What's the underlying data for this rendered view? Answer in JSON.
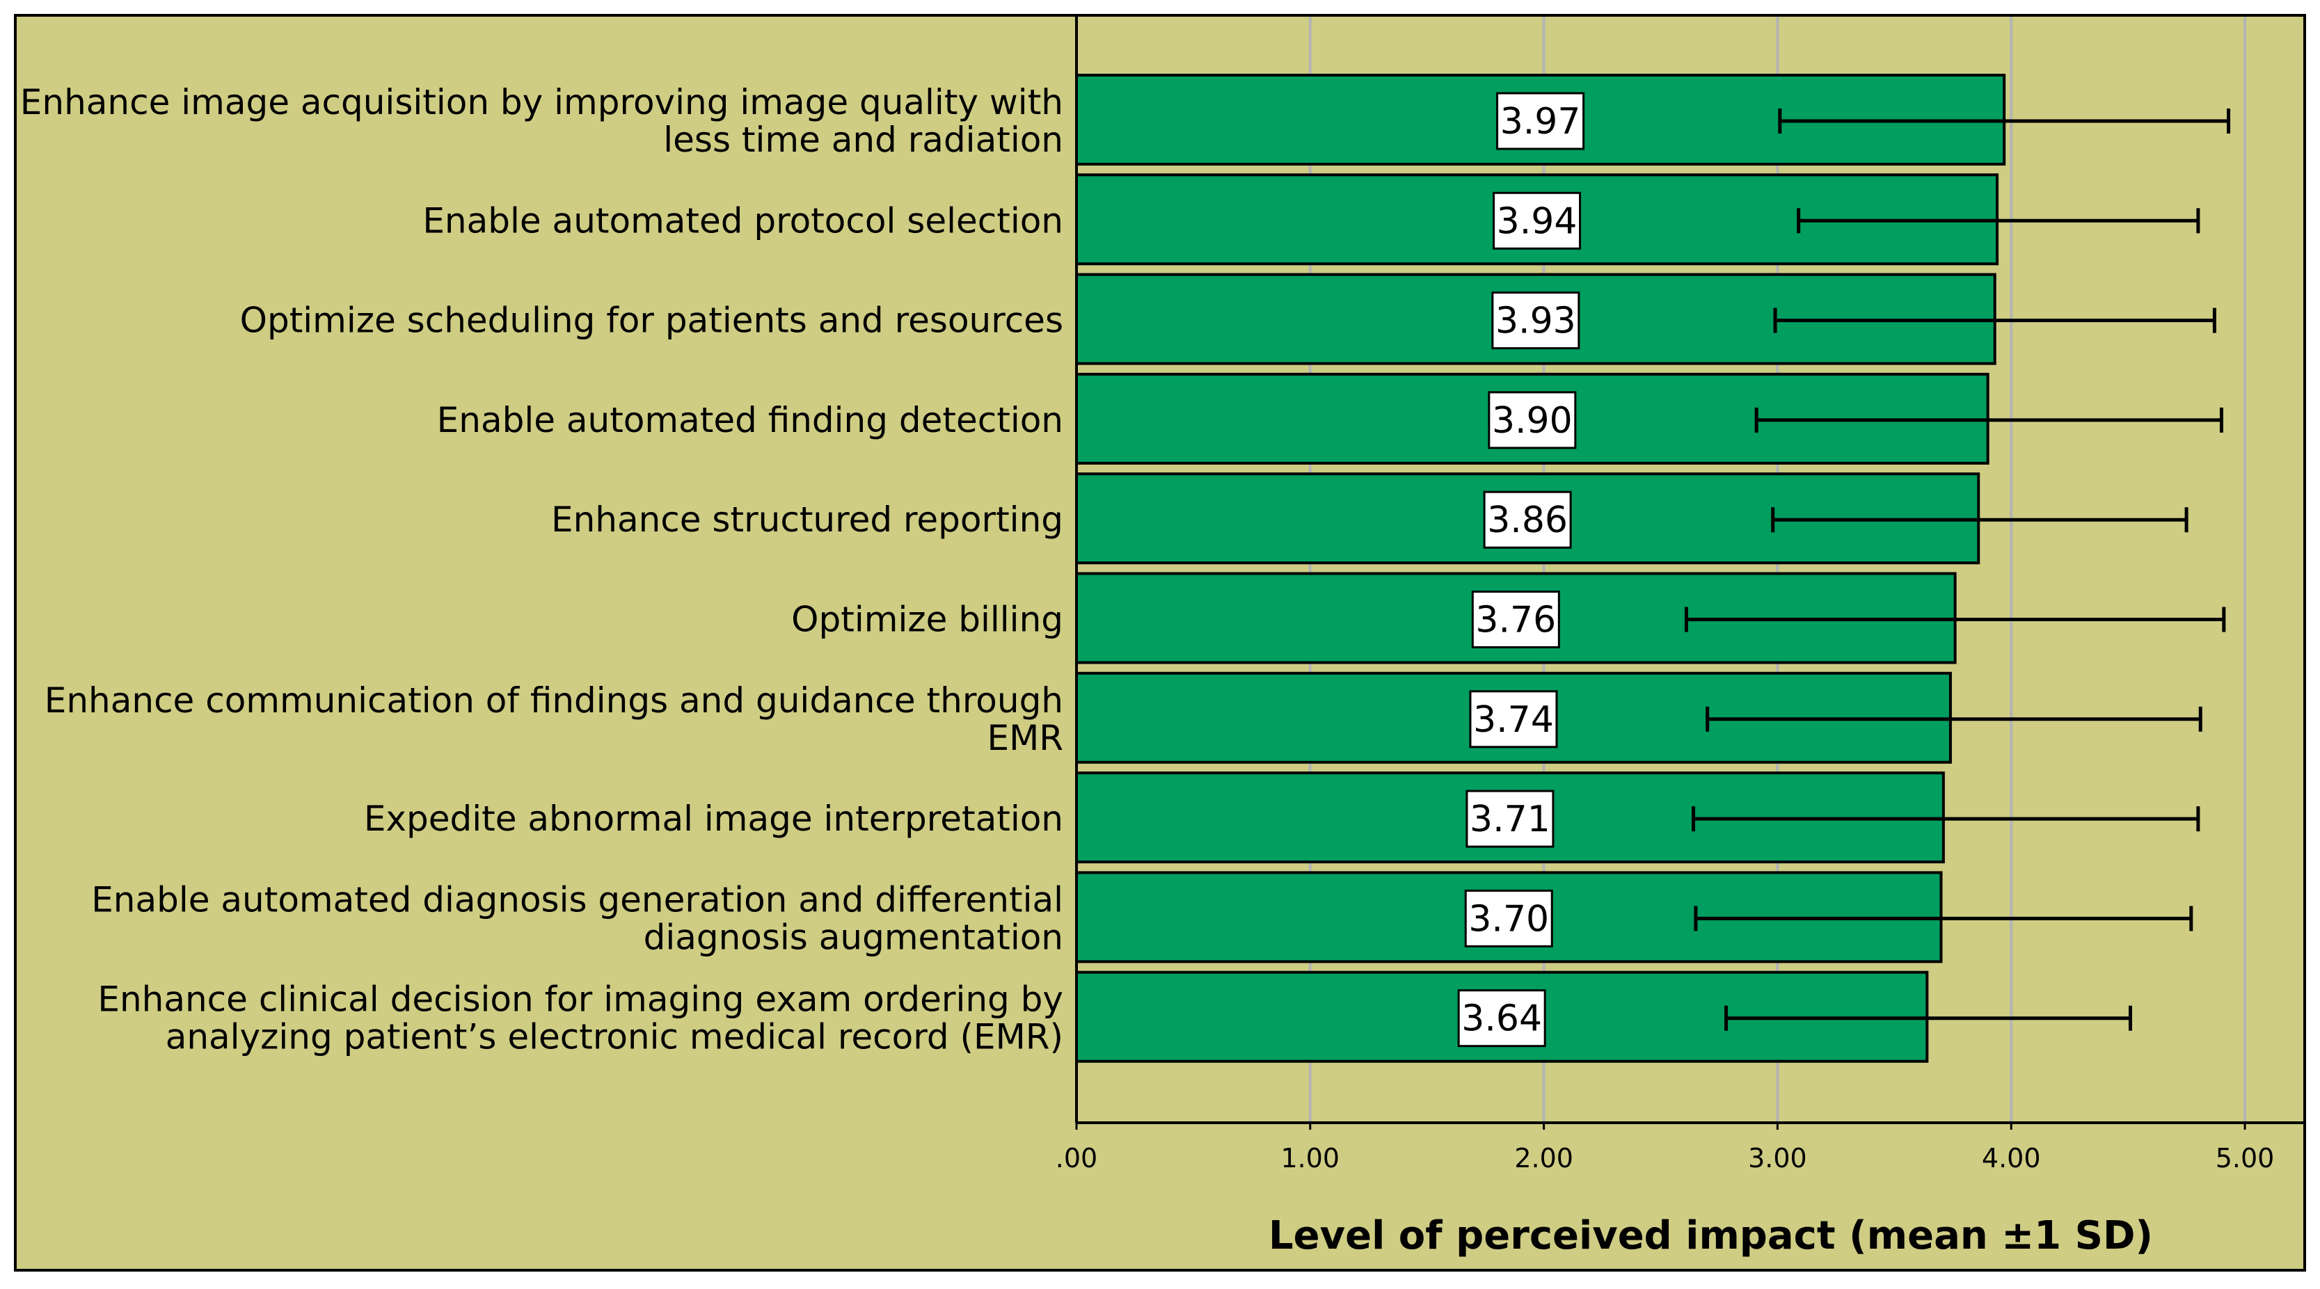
{
  "chart_data": {
    "type": "bar",
    "orientation": "horizontal",
    "categories": [
      [
        "Enhance image acquisition by improving image quality with",
        "less time and radiation"
      ],
      [
        "Enable automated protocol selection"
      ],
      [
        "Optimize scheduling for patients and resources"
      ],
      [
        "Enable automated finding detection"
      ],
      [
        "Enhance structured reporting"
      ],
      [
        "Optimize billing"
      ],
      [
        "Enhance communication of findings and guidance through",
        "EMR"
      ],
      [
        "Expedite abnormal image interpretation"
      ],
      [
        "Enable automated diagnosis generation and differential",
        "diagnosis augmentation"
      ],
      [
        "Enhance clinical decision for imaging exam ordering by",
        "analyzing patient’s electronic medical record (EMR)"
      ]
    ],
    "values": [
      3.97,
      3.94,
      3.93,
      3.9,
      3.86,
      3.76,
      3.74,
      3.71,
      3.7,
      3.64
    ],
    "value_labels": [
      "3.97",
      "3.94",
      "3.93",
      "3.90",
      "3.86",
      "3.76",
      "3.74",
      "3.71",
      "3.70",
      "3.64"
    ],
    "error_low": [
      3.01,
      3.09,
      2.99,
      2.91,
      2.98,
      2.61,
      2.7,
      2.64,
      2.65,
      2.78
    ],
    "error_high": [
      4.93,
      4.8,
      4.87,
      4.9,
      4.75,
      4.91,
      4.81,
      4.8,
      4.77,
      4.51
    ],
    "xlabel": "Level of perceived impact (mean ±1 SD)",
    "xlim": [
      0,
      5.25
    ],
    "xticks": [
      0,
      1,
      2,
      3,
      4,
      5
    ],
    "xtick_labels": [
      ".00",
      "1.00",
      "2.00",
      "3.00",
      "4.00",
      "5.00"
    ],
    "grid": "vertical",
    "colors": {
      "background": "#cfcd84",
      "bar_fill": "#009e5f",
      "bar_edge": "#000000",
      "grid": "#b4b4b4",
      "label_box": "#ffffff"
    }
  }
}
